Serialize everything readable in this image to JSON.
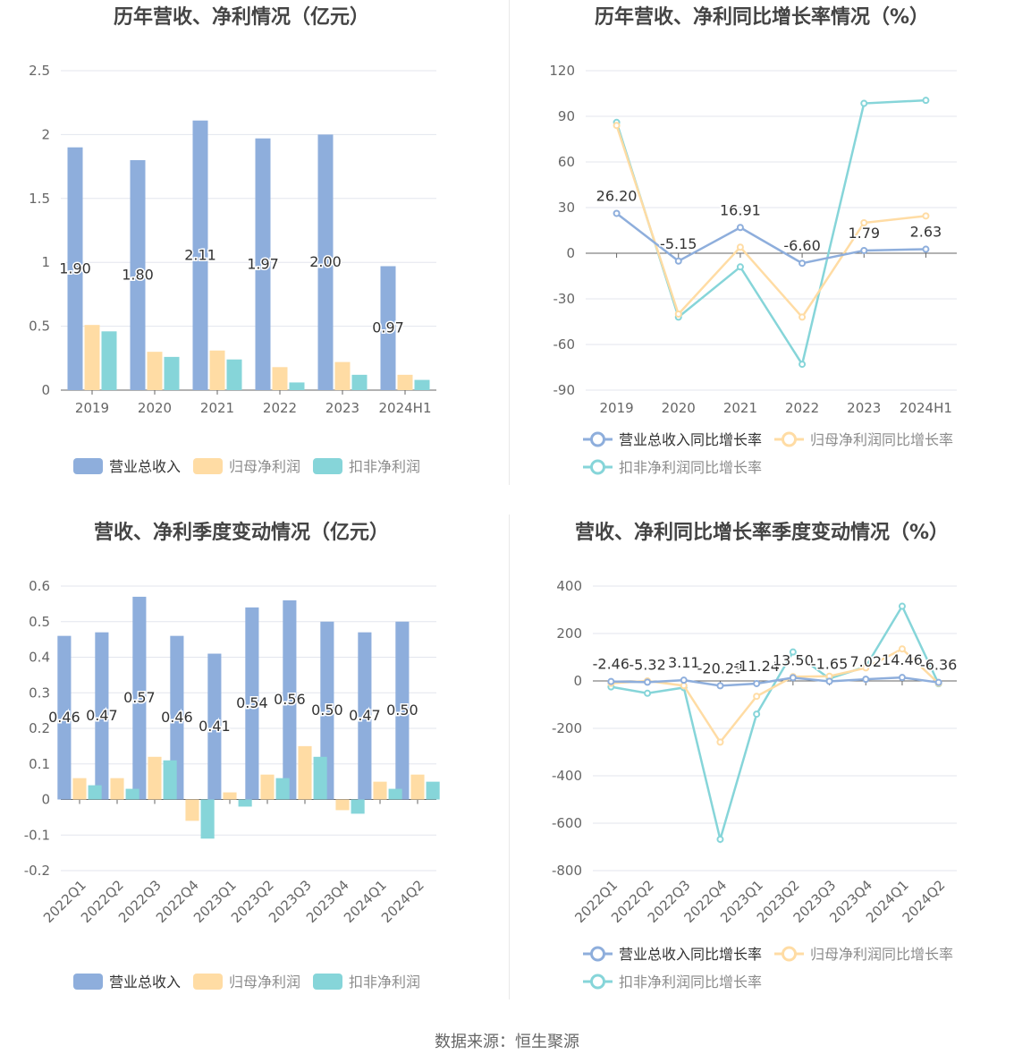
{
  "colors": {
    "revenue": "#8eaedc",
    "net_profit": "#ffdca4",
    "deducted_profit": "#86d5d9",
    "axis_text": "#666666",
    "grid": "#e3e6ee",
    "title": "#444444"
  },
  "source": "数据来源：恒生聚源",
  "chart_data": [
    {
      "type": "bar",
      "title": "历年营收、净利情况（亿元）",
      "categories": [
        "2019",
        "2020",
        "2021",
        "2022",
        "2023",
        "2024H1"
      ],
      "ylim": [
        0,
        2.5
      ],
      "yticks": [
        "0",
        "0.5",
        "1",
        "1.5",
        "2",
        "2.5"
      ],
      "legend": "bottom",
      "series": [
        {
          "name": "营业总收入",
          "values": [
            1.9,
            1.8,
            2.11,
            1.97,
            2.0,
            0.97
          ],
          "labels": [
            "1.90",
            "1.80",
            "2.11",
            "1.97",
            "2.00",
            "0.97"
          ]
        },
        {
          "name": "归母净利润",
          "values": [
            0.51,
            0.3,
            0.31,
            0.18,
            0.22,
            0.12
          ]
        },
        {
          "name": "扣非净利润",
          "values": [
            0.46,
            0.26,
            0.24,
            0.06,
            0.12,
            0.08
          ]
        }
      ]
    },
    {
      "type": "line",
      "title": "历年营收、净利同比增长率情况（%）",
      "categories": [
        "2019",
        "2020",
        "2021",
        "2022",
        "2023",
        "2024H1"
      ],
      "ylim": [
        -90,
        120
      ],
      "yticks": [
        "-90",
        "-60",
        "-30",
        "0",
        "30",
        "60",
        "90",
        "120"
      ],
      "legend": "bottom",
      "series": [
        {
          "name": "营业总收入同比增长率",
          "values": [
            26.2,
            -5.15,
            16.91,
            -6.6,
            1.79,
            2.63
          ],
          "labels": [
            "26.20",
            "-5.15",
            "16.91",
            "-6.60",
            "1.79",
            "2.63"
          ]
        },
        {
          "name": "归母净利润同比增长率",
          "values": [
            84,
            -40,
            4,
            -42,
            20,
            24.5
          ]
        },
        {
          "name": "扣非净利润同比增长率",
          "values": [
            86,
            -42,
            -9,
            -73,
            98.5,
            100.5
          ]
        }
      ]
    },
    {
      "type": "bar",
      "title": "营收、净利季度变动情况（亿元）",
      "categories": [
        "2022Q1",
        "2022Q2",
        "2022Q3",
        "2022Q4",
        "2023Q1",
        "2023Q2",
        "2023Q3",
        "2023Q4",
        "2024Q1",
        "2024Q2"
      ],
      "ylim": [
        -0.2,
        0.6
      ],
      "yticks": [
        "-0.2",
        "-0.1",
        "0",
        "0.1",
        "0.2",
        "0.3",
        "0.4",
        "0.5",
        "0.6"
      ],
      "legend": "bottom",
      "series": [
        {
          "name": "营业总收入",
          "values": [
            0.46,
            0.47,
            0.57,
            0.46,
            0.41,
            0.54,
            0.56,
            0.5,
            0.47,
            0.5
          ],
          "labels": [
            "0.46",
            "0.47",
            "0.57",
            "0.46",
            "0.41",
            "0.54",
            "0.56",
            "0.50",
            "0.47",
            "0.50"
          ]
        },
        {
          "name": "归母净利润",
          "values": [
            0.06,
            0.06,
            0.12,
            -0.06,
            0.02,
            0.07,
            0.15,
            -0.03,
            0.05,
            0.07
          ]
        },
        {
          "name": "扣非净利润",
          "values": [
            0.04,
            0.03,
            0.11,
            -0.11,
            -0.02,
            0.06,
            0.12,
            -0.04,
            0.03,
            0.05
          ]
        }
      ]
    },
    {
      "type": "line",
      "title": "营收、净利同比增长率季度变动情况（%）",
      "categories": [
        "2022Q1",
        "2022Q2",
        "2022Q3",
        "2022Q4",
        "2023Q1",
        "2023Q2",
        "2023Q3",
        "2023Q4",
        "2024Q1",
        "2024Q2"
      ],
      "ylim": [
        -800,
        400
      ],
      "yticks": [
        "-800",
        "-600",
        "-400",
        "-200",
        "0",
        "200",
        "400"
      ],
      "legend": "bottom",
      "series": [
        {
          "name": "营业总收入同比增长率",
          "values": [
            -2.46,
            -5.32,
            3.11,
            -20.29,
            -11.24,
            13.5,
            -1.65,
            7.02,
            14.46,
            -6.36
          ],
          "labels": [
            "-2.46",
            "-5.32",
            "3.11",
            "-20.29",
            "-11.24",
            "13.50",
            "-1.65",
            "7.02",
            "14.46",
            "-6.36"
          ]
        },
        {
          "name": "归母净利润同比增长率",
          "values": [
            -10,
            0,
            -20,
            -258,
            -65,
            18,
            20,
            55,
            135,
            -10
          ]
        },
        {
          "name": "扣非净利润同比增长率",
          "values": [
            -25,
            -52,
            -28,
            -668,
            -140,
            122,
            10,
            60,
            315,
            -12
          ]
        }
      ]
    }
  ]
}
